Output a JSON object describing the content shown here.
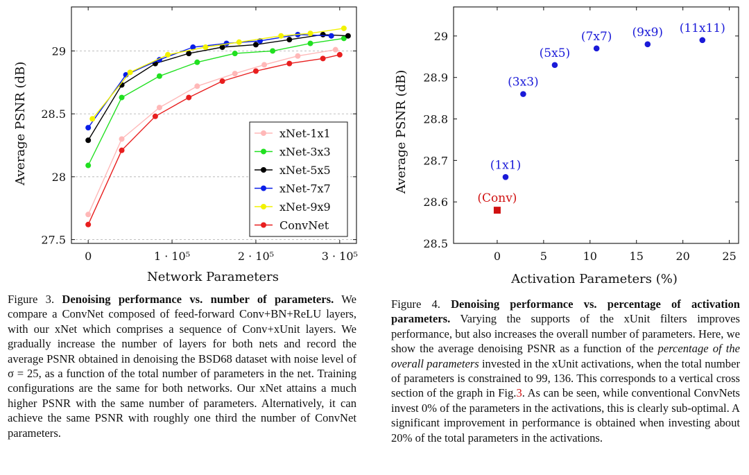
{
  "figures": [
    {
      "xlabel": "Network Parameters",
      "ylabel": "Average PSNR (dB)",
      "caption": {
        "label": "Figure 3.",
        "title": "Denoising performance vs. number of parameters.",
        "body": "We compare a ConvNet composed of feed-forward Conv+BN+ReLU layers, with our xNet which comprises a sequence of Conv+xUnit layers. We gradually increase the number of layers for both nets and record the average PSNR obtained in denoising the BSD68 dataset with noise level of σ = 25, as a function of the total number of parameters in the net. Training configurations are the same for both networks. Our xNet attains a much higher PSNR with the same number of parameters. Alternatively, it can achieve the same PSNR with roughly one third the number of ConvNet parameters."
      }
    },
    {
      "xlabel": "Activation Parameters (%)",
      "ylabel": "Average PSNR (dB)",
      "caption": {
        "label": "Figure 4.",
        "title": "Denoising performance vs. percentage of activation parameters.",
        "body_pre": "Varying the supports of the xUnit filters improves performance, but also increases the overall number of parameters. Here, we show the average denoising PSNR as a function of the",
        "body_italic": "percentage of the overall parameters",
        "body_mid": "invested in the xUnit activations, when the total number of parameters is constrained to 99, 136. This corresponds to a vertical cross section of the graph in Fig.",
        "fig_ref": "3",
        "body_post": ". As can be seen, while conventional ConvNets invest 0% of the parameters in the activations, this is clearly sub-optimal. A significant improvement in performance is obtained when investing about 20% of the total parameters in the activations."
      }
    }
  ],
  "chart_data": [
    {
      "type": "line",
      "title": "",
      "xlabel": "Network Parameters",
      "ylabel": "Average PSNR (dB)",
      "xlim": [
        -20000,
        320000
      ],
      "ylim": [
        27.47,
        29.35
      ],
      "x_ticks": [
        {
          "value": 0,
          "label": "0"
        },
        {
          "value": 100000,
          "label": "1 · 10⁵"
        },
        {
          "value": 200000,
          "label": "2 · 10⁵"
        },
        {
          "value": 300000,
          "label": "3 · 10⁵"
        }
      ],
      "y_ticks": [
        {
          "value": 27.5,
          "label": "27.5"
        },
        {
          "value": 28,
          "label": "28"
        },
        {
          "value": 28.5,
          "label": "28.5"
        },
        {
          "value": 29,
          "label": "29"
        }
      ],
      "grid": "horizontal dashed at 27.5, 28, 28.5, 29",
      "legend_position": "bottom-right",
      "series": [
        {
          "name": "xNet-1x1",
          "color": "#ffb8b8",
          "x": [
            0,
            40000,
            85000,
            130000,
            175000,
            210000,
            250000,
            295000
          ],
          "y": [
            27.7,
            28.3,
            28.55,
            28.72,
            28.82,
            28.89,
            28.96,
            29.01
          ]
        },
        {
          "name": "xNet-3x3",
          "color": "#20e020",
          "x": [
            0,
            40000,
            85000,
            130000,
            175000,
            220000,
            265000,
            305000
          ],
          "y": [
            28.09,
            28.63,
            28.8,
            28.91,
            28.98,
            29.0,
            29.06,
            29.1
          ]
        },
        {
          "name": "xNet-5x5",
          "color": "#000000",
          "x": [
            0,
            40000,
            80000,
            120000,
            160000,
            200000,
            240000,
            280000,
            310000
          ],
          "y": [
            28.29,
            28.73,
            28.9,
            28.98,
            29.03,
            29.05,
            29.09,
            29.13,
            29.12
          ]
        },
        {
          "name": "xNet-7x7",
          "color": "#0a1ee8",
          "x": [
            0,
            45000,
            85000,
            125000,
            165000,
            205000,
            250000,
            290000
          ],
          "y": [
            28.39,
            28.81,
            28.93,
            29.03,
            29.06,
            29.08,
            29.13,
            29.12
          ]
        },
        {
          "name": "xNet-9x9",
          "color": "#f2f200",
          "x": [
            5000,
            50000,
            95000,
            140000,
            180000,
            230000,
            265000,
            305000
          ],
          "y": [
            28.46,
            28.83,
            28.97,
            29.03,
            29.07,
            29.12,
            29.14,
            29.18
          ]
        },
        {
          "name": "ConvNet",
          "color": "#e81e1e",
          "x": [
            0,
            40000,
            80000,
            120000,
            160000,
            200000,
            240000,
            280000,
            300000
          ],
          "y": [
            27.62,
            28.21,
            28.48,
            28.63,
            28.76,
            28.84,
            28.9,
            28.94,
            28.97
          ]
        }
      ]
    },
    {
      "type": "scatter",
      "title": "",
      "xlabel": "Activation Parameters (%)",
      "ylabel": "Average PSNR (dB)",
      "xlim": [
        -4.7,
        26
      ],
      "ylim": [
        28.5,
        29.07
      ],
      "x_ticks": [
        {
          "value": 0,
          "label": "0"
        },
        {
          "value": 5,
          "label": "5"
        },
        {
          "value": 10,
          "label": "10"
        },
        {
          "value": 15,
          "label": "15"
        },
        {
          "value": 20,
          "label": "20"
        },
        {
          "value": 25,
          "label": "25"
        }
      ],
      "y_ticks": [
        {
          "value": 28.5,
          "label": "28.5"
        },
        {
          "value": 28.6,
          "label": "28.6"
        },
        {
          "value": 28.7,
          "label": "28.7"
        },
        {
          "value": 28.8,
          "label": "28.8"
        },
        {
          "value": 28.9,
          "label": "28.9"
        },
        {
          "value": 29,
          "label": "29"
        }
      ],
      "grid": "none",
      "points": [
        {
          "label": "(Conv)",
          "x": 0,
          "y": 28.58,
          "color": "#d01010",
          "marker": "square"
        },
        {
          "label": "(1x1)",
          "x": 0.9,
          "y": 28.66,
          "color": "#1a1ad8",
          "marker": "circle"
        },
        {
          "label": "(3x3)",
          "x": 2.8,
          "y": 28.86,
          "color": "#1a1ad8",
          "marker": "circle"
        },
        {
          "label": "(5x5)",
          "x": 6.2,
          "y": 28.93,
          "color": "#1a1ad8",
          "marker": "circle"
        },
        {
          "label": "(7x7)",
          "x": 10.7,
          "y": 28.97,
          "color": "#1a1ad8",
          "marker": "circle"
        },
        {
          "label": "(9x9)",
          "x": 16.2,
          "y": 28.98,
          "color": "#1a1ad8",
          "marker": "circle"
        },
        {
          "label": "(11x11)",
          "x": 22.1,
          "y": 28.99,
          "color": "#1a1ad8",
          "marker": "circle"
        }
      ]
    }
  ]
}
